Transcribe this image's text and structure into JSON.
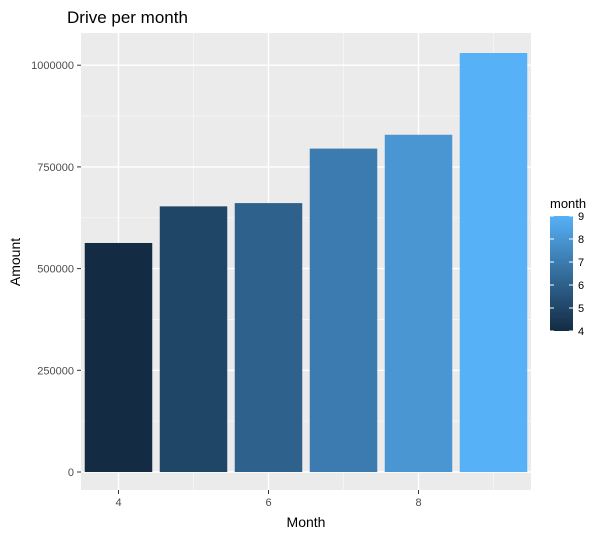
{
  "chart_data": {
    "type": "bar",
    "title": "Drive per month",
    "xlabel": "Month",
    "ylabel": "Amount",
    "categories": [
      4,
      5,
      6,
      7,
      8,
      9
    ],
    "values": [
      563000,
      653000,
      661000,
      795000,
      829000,
      1030000
    ],
    "xlim": [
      3.5,
      9.5
    ],
    "x_ticks": [
      4,
      6,
      8
    ],
    "ylim": [
      0,
      1030000
    ],
    "y_ticks": [
      0,
      250000,
      500000,
      750000,
      1000000
    ],
    "grid": true,
    "panel_background": "#ebebeb",
    "legend": {
      "title": "month",
      "position": "right",
      "ticks": [
        4,
        5,
        6,
        7,
        8,
        9
      ],
      "colors": {
        "low": "#132b43",
        "high": "#56b1f7"
      }
    }
  }
}
